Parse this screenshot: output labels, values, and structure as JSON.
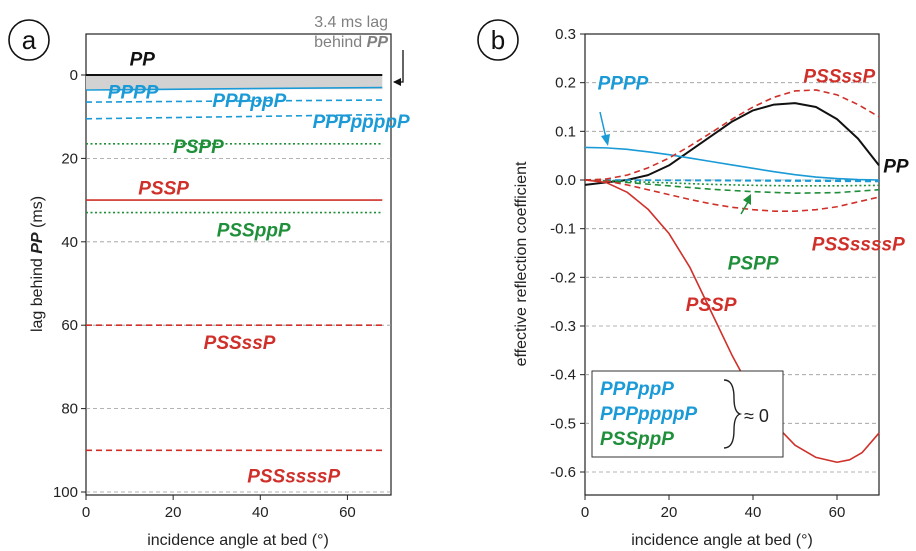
{
  "chart_data": [
    {
      "type": "line",
      "panel": "a",
      "xlabel": "incidence angle at bed (°)",
      "ylabel_prefix": "lag behind ",
      "ylabel_emph": "PP",
      "ylabel_suffix": " (ms)",
      "xlim": [
        0,
        70
      ],
      "ylim": [
        100,
        -10
      ],
      "y_reversed": true,
      "xticks": [
        "0",
        "20",
        "40",
        "60"
      ],
      "yticks": [
        "0",
        "20",
        "40",
        "60",
        "80",
        "100"
      ],
      "grid": "horizontal dashed",
      "annotation_line1": "3.4 ms lag",
      "annotation_line2": "behind ",
      "annotation_emph": "PP",
      "series": [
        {
          "name": "PP",
          "x": [
            0,
            68
          ],
          "y": [
            0,
            0
          ],
          "color": "#111111",
          "dash": "solid",
          "label_x": 10,
          "label_y": -4
        },
        {
          "name": "PPPP",
          "x": [
            0,
            68
          ],
          "y": [
            3.6,
            3.0
          ],
          "color": "#1a9ad6",
          "dash": "solid",
          "label_x": 5,
          "label_y": 4
        },
        {
          "name": "PPPppP",
          "x": [
            0,
            68
          ],
          "y": [
            6.5,
            6.0
          ],
          "color": "#1a9ad6",
          "dash": "dash",
          "label_x": 29,
          "label_y": 6
        },
        {
          "name": "PPPppppP",
          "x": [
            0,
            68
          ],
          "y": [
            10.5,
            9.5
          ],
          "color": "#1a9ad6",
          "dash": "dash",
          "label_x": 52,
          "label_y": 11
        },
        {
          "name": "PSPP",
          "x": [
            0,
            68
          ],
          "y": [
            16.5,
            16.5
          ],
          "color": "#1f8f3a",
          "dash": "dot",
          "label_x": 20,
          "label_y": 17
        },
        {
          "name": "PSSP",
          "x": [
            0,
            68
          ],
          "y": [
            30.0,
            30.0
          ],
          "color": "#d0302a",
          "dash": "solid",
          "label_x": 12,
          "label_y": 27
        },
        {
          "name": "PSSppP",
          "x": [
            0,
            68
          ],
          "y": [
            33.0,
            33.0
          ],
          "color": "#1f8f3a",
          "dash": "dot",
          "label_x": 30,
          "label_y": 37
        },
        {
          "name": "PSSssP",
          "x": [
            0,
            68
          ],
          "y": [
            60.0,
            60.0
          ],
          "color": "#d0302a",
          "dash": "dash",
          "label_x": 27,
          "label_y": 64
        },
        {
          "name": "PSSssssP",
          "x": [
            0,
            68
          ],
          "y": [
            90.0,
            90.0
          ],
          "color": "#d0302a",
          "dash": "dash",
          "label_x": 37,
          "label_y": 96
        }
      ]
    },
    {
      "type": "line",
      "panel": "b",
      "xlabel": "incidence angle at bed (°)",
      "ylabel": "effective reflection coefficient",
      "xlim": [
        0,
        70
      ],
      "ylim": [
        -0.65,
        0.3
      ],
      "xticks": [
        "0",
        "20",
        "40",
        "60"
      ],
      "yticks": [
        "0.3",
        "0.2",
        "0.1",
        "0.0",
        "-0.1",
        "-0.2",
        "-0.3",
        "-0.4",
        "-0.5",
        "-0.6"
      ],
      "grid": "horizontal dashed",
      "legend_items": [
        "PPPppP",
        "PPPppppP",
        "PSSppP"
      ],
      "legend_colors": [
        "#1a9ad6",
        "#1a9ad6",
        "#1f8f3a"
      ],
      "legend_note": "≈ 0",
      "series": [
        {
          "name": "PP",
          "color": "#111111",
          "dash": "solid",
          "x": [
            0,
            5,
            10,
            15,
            20,
            25,
            30,
            35,
            40,
            45,
            50,
            55,
            60,
            65,
            70
          ],
          "y": [
            -0.01,
            -0.005,
            0.0,
            0.01,
            0.03,
            0.06,
            0.09,
            0.12,
            0.143,
            0.155,
            0.158,
            0.15,
            0.125,
            0.085,
            0.03
          ]
        },
        {
          "name": "PPPP",
          "color": "#1a9ad6",
          "dash": "solid",
          "x": [
            0,
            5,
            10,
            15,
            20,
            25,
            30,
            35,
            40,
            45,
            50,
            55,
            60,
            65,
            70
          ],
          "y": [
            0.067,
            0.066,
            0.063,
            0.058,
            0.052,
            0.045,
            0.038,
            0.031,
            0.024,
            0.017,
            0.011,
            0.006,
            0.003,
            0.001,
            0.0
          ]
        },
        {
          "name": "PPPppP",
          "color": "#1a9ad6",
          "dash": "dash",
          "x": [
            0,
            70
          ],
          "y": [
            0.0,
            -0.003
          ]
        },
        {
          "name": "PPPppppP",
          "color": "#1a9ad6",
          "dash": "dash",
          "x": [
            0,
            70
          ],
          "y": [
            0.0,
            -0.001
          ]
        },
        {
          "name": "PSSppP",
          "color": "#1f8f3a",
          "dash": "dot",
          "x": [
            0,
            10,
            20,
            30,
            40,
            50,
            60,
            70
          ],
          "y": [
            0.0,
            -0.003,
            -0.006,
            -0.009,
            -0.011,
            -0.012,
            -0.012,
            -0.011
          ]
        },
        {
          "name": "PSPP",
          "color": "#1f8f3a",
          "dash": "dash",
          "x": [
            0,
            10,
            20,
            30,
            40,
            50,
            60,
            70
          ],
          "y": [
            0.0,
            -0.005,
            -0.012,
            -0.019,
            -0.024,
            -0.027,
            -0.026,
            -0.02
          ]
        },
        {
          "name": "PSSssP",
          "color": "#d0302a",
          "dash": "dash",
          "x": [
            0,
            5,
            10,
            15,
            20,
            25,
            30,
            35,
            40,
            45,
            50,
            55,
            60,
            65,
            70
          ],
          "y": [
            0.0,
            0.002,
            0.01,
            0.025,
            0.045,
            0.07,
            0.097,
            0.125,
            0.15,
            0.17,
            0.183,
            0.185,
            0.175,
            0.155,
            0.13
          ]
        },
        {
          "name": "PSSssssP",
          "color": "#d0302a",
          "dash": "dash",
          "x": [
            0,
            5,
            10,
            15,
            20,
            25,
            30,
            35,
            40,
            45,
            50,
            55,
            60,
            65,
            70
          ],
          "y": [
            0.0,
            -0.002,
            -0.01,
            -0.02,
            -0.03,
            -0.04,
            -0.049,
            -0.056,
            -0.061,
            -0.064,
            -0.064,
            -0.061,
            -0.055,
            -0.045,
            -0.035
          ]
        },
        {
          "name": "PSSP",
          "color": "#d0302a",
          "dash": "solid",
          "x": [
            0,
            5,
            10,
            15,
            20,
            25,
            30,
            35,
            40,
            45,
            50,
            55,
            60,
            63,
            66,
            70
          ],
          "y": [
            0.0,
            -0.005,
            -0.025,
            -0.06,
            -0.11,
            -0.18,
            -0.27,
            -0.36,
            -0.44,
            -0.5,
            -0.545,
            -0.57,
            -0.58,
            -0.575,
            -0.56,
            -0.52
          ]
        }
      ],
      "labels": [
        {
          "text": "PPPP",
          "color": "#1a9ad6",
          "x": 3,
          "y": 0.2
        },
        {
          "text": "PSSssP",
          "color": "#d0302a",
          "x": 52,
          "y": 0.215
        },
        {
          "text": "PP",
          "color": "#111111",
          "x": 71,
          "y": 0.03
        },
        {
          "text": "PSPP",
          "color": "#1f8f3a",
          "x": 34,
          "y": -0.17
        },
        {
          "text": "PSSssssP",
          "color": "#d0302a",
          "x": 54,
          "y": -0.13
        },
        {
          "text": "PSSP",
          "color": "#d0302a",
          "x": 24,
          "y": -0.255
        }
      ]
    }
  ],
  "panel_labels": [
    "a",
    "b"
  ]
}
